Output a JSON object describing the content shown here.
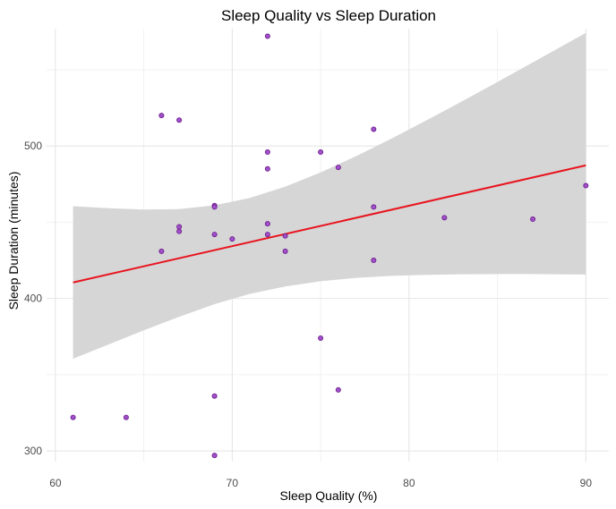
{
  "chart_data": {
    "type": "scatter",
    "title": "Sleep Quality vs Sleep Duration",
    "xlabel": "Sleep Quality (%)",
    "ylabel": "Sleep Duration (minutes)",
    "xlim": [
      59.5,
      91.3
    ],
    "ylim": [
      293,
      577
    ],
    "x_ticks": [
      60,
      70,
      80,
      90
    ],
    "y_ticks": [
      300,
      400,
      500
    ],
    "grid": true,
    "points": [
      {
        "x": 61,
        "y": 322
      },
      {
        "x": 64,
        "y": 322
      },
      {
        "x": 66,
        "y": 431
      },
      {
        "x": 66,
        "y": 520
      },
      {
        "x": 67,
        "y": 517
      },
      {
        "x": 67,
        "y": 447
      },
      {
        "x": 67,
        "y": 444
      },
      {
        "x": 69,
        "y": 461
      },
      {
        "x": 69,
        "y": 460
      },
      {
        "x": 69,
        "y": 442
      },
      {
        "x": 69,
        "y": 336
      },
      {
        "x": 69,
        "y": 297
      },
      {
        "x": 70,
        "y": 439
      },
      {
        "x": 72,
        "y": 572
      },
      {
        "x": 72,
        "y": 496
      },
      {
        "x": 72,
        "y": 485
      },
      {
        "x": 72,
        "y": 449
      },
      {
        "x": 72,
        "y": 442
      },
      {
        "x": 73,
        "y": 441
      },
      {
        "x": 73,
        "y": 431
      },
      {
        "x": 75,
        "y": 496
      },
      {
        "x": 75,
        "y": 374
      },
      {
        "x": 76,
        "y": 486
      },
      {
        "x": 76,
        "y": 340
      },
      {
        "x": 78,
        "y": 511
      },
      {
        "x": 78,
        "y": 460
      },
      {
        "x": 78,
        "y": 425
      },
      {
        "x": 82,
        "y": 453
      },
      {
        "x": 87,
        "y": 452
      },
      {
        "x": 90,
        "y": 474
      }
    ],
    "trend_line": {
      "x": [
        61,
        90
      ],
      "y": [
        410.5,
        487.3
      ]
    },
    "confidence_band": {
      "x": [
        61,
        63,
        65,
        67,
        69,
        71,
        73,
        75,
        77,
        79,
        81,
        83,
        85,
        87,
        89,
        90
      ],
      "upper": [
        460.5,
        459.2,
        458.3,
        458.6,
        461.1,
        466.0,
        473.4,
        482.7,
        493.3,
        504.8,
        516.9,
        529.3,
        542.0,
        554.8,
        567.8,
        574.2
      ],
      "lower": [
        360.5,
        369.8,
        379.1,
        388.0,
        396.3,
        403.0,
        407.9,
        411.3,
        413.5,
        414.8,
        415.5,
        415.9,
        416.0,
        416.0,
        415.8,
        415.7
      ]
    },
    "colors": {
      "point_fill": "#a050c8",
      "point_stroke": "#6a1a8a",
      "trend_line": "#e8141e",
      "confidence_band": "#d6d6d6",
      "grid_major": "#e4e4e4",
      "grid_minor": "#f1f1f1"
    }
  }
}
